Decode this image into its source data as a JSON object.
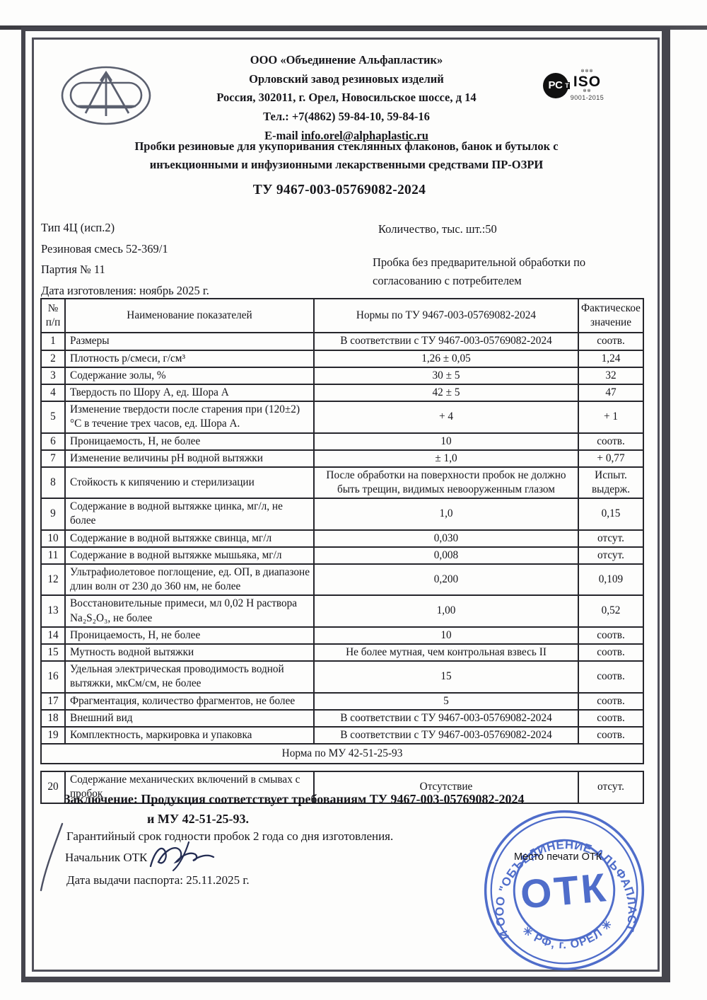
{
  "header": {
    "company": "ООО «Объединение Альфапластик»",
    "factory": "Орловский завод резиновых изделий",
    "address": "Россия, 302011, г. Орел, Новосильское шоссе, д 14",
    "phone": "Тел.: +7(4862) 59-84-10, 59-84-16",
    "email_label": "E-mail",
    "email": "info.orel@alphaplastic.ru",
    "iso_badge": {
      "mark": "РС",
      "mark_t": "Т",
      "iso": "ISO",
      "deco_top": "✼✼✼",
      "deco_bottom": "✼✼",
      "sub": "9001-2015"
    }
  },
  "product_title": "Пробки резиновые для укупоривания стеклянных флаконов, банок и бутылок с инъекционными и инфузионными лекарственными средствами ПР-ОЗРИ",
  "tu_number": "ТУ 9467-003-05769082-2024",
  "info": {
    "type": "Тип 4Ц (исп.2)",
    "mixture": "Резиновая смесь 52-369/1",
    "batch": "Партия № 11",
    "mfg_date": "Дата изготовления: ноябрь  2025 г.",
    "quantity": "Количество, тыс. шт.:50",
    "note": "Пробка без предварительной обработки по согласованию с потребителем"
  },
  "table": {
    "headers": {
      "num": "№ п/п",
      "name": "Наименование показателей",
      "norm": "Нормы по ТУ 9467-003-05769082-2024",
      "actual": "Фактическое значение"
    },
    "rows": [
      {
        "num": "1",
        "name": "Размеры",
        "norm": "В соответствии с ТУ 9467-003-05769082-2024",
        "actual": "соотв."
      },
      {
        "num": "2",
        "name": "Плотность р/смеси, г/см³",
        "norm": "1,26 ± 0,05",
        "actual": "1,24"
      },
      {
        "num": "3",
        "name": "Содержание золы, %",
        "norm": "30 ± 5",
        "actual": "32"
      },
      {
        "num": "4",
        "name": "Твердость по Шору А, ед. Шора А",
        "norm": "42 ± 5",
        "actual": "47"
      },
      {
        "num": "5",
        "name": "Изменение твердости после старения при (120±2) °С в течение трех часов, ед. Шора А.",
        "norm": "+ 4",
        "actual": "+ 1"
      },
      {
        "num": "6",
        "name": "Проницаемость, Н, не более",
        "norm": "10",
        "actual": "соотв."
      },
      {
        "num": "7",
        "name": "Изменение величины рН водной вытяжки",
        "norm": "± 1,0",
        "actual": "+ 0,77"
      },
      {
        "num": "8",
        "name": "Стойкость к кипячению и стерилизации",
        "norm": "После обработки на поверхности пробок не должно быть трещин, видимых невооруженным глазом",
        "actual": "Испыт. выдерж."
      },
      {
        "num": "9",
        "name": "Содержание в водной вытяжке цинка, мг/л, не более",
        "norm": "1,0",
        "actual": "0,15"
      },
      {
        "num": "10",
        "name": "Содержание в водной вытяжке свинца, мг/л",
        "norm": "0,030",
        "actual": "отсут."
      },
      {
        "num": "11",
        "name": "Содержание в водной вытяжке мышьяка, мг/л",
        "norm": "0,008",
        "actual": "отсут."
      },
      {
        "num": "12",
        "name": "Ультрафиолетовое поглощение, ед. ОП, в диапазоне длин волн от 230 до 360 нм, не более",
        "norm": "0,200",
        "actual": "0,109"
      },
      {
        "num": "13",
        "name": "Восстановительные примеси, мл 0,02 Н раствора Na₂S₂O₃, не более",
        "norm": "1,00",
        "actual": "0,52"
      },
      {
        "num": "14",
        "name": "Проницаемость, Н, не более",
        "norm": "10",
        "actual": "соотв."
      },
      {
        "num": "15",
        "name": "Мутность водной вытяжки",
        "norm": "Не более мутная, чем контрольная взвесь II",
        "actual": "соотв."
      },
      {
        "num": "16",
        "name": "Удельная электрическая проводимость водной вытяжки, мкСм/см, не более",
        "norm": "15",
        "actual": "соотв."
      },
      {
        "num": "17",
        "name": "Фрагментация, количество фрагментов, не более",
        "norm": "5",
        "actual": "соотв."
      },
      {
        "num": "18",
        "name": "Внешний вид",
        "norm": "В соответствии с ТУ 9467-003-05769082-2024",
        "actual": "соотв."
      },
      {
        "num": "19",
        "name": "Комплектность, маркировка и упаковка",
        "norm": "В соответствии с ТУ 9467-003-05769082-2024",
        "actual": "соотв."
      }
    ],
    "mu_note": "Норма по МУ 42-51-25-93",
    "row20": {
      "num": "20",
      "name": "Содержание механических включений в смывах с пробок",
      "norm": "Отсутствие",
      "actual": "отсут."
    }
  },
  "conclusion": {
    "label": "Заключение:",
    "line1": "Продукция соответствует требованиям ТУ 9467-003-05769082-2024",
    "line2": "и МУ 42-51-25-93.",
    "warranty": "Гарантийный срок годности пробок 2 года со дня изготовления.",
    "otk_head_label": "Начальник ОТК",
    "passport_date": "Дата выдачи паспорта:  25.11.2025 г."
  },
  "stamp": {
    "place_label": "Место печати ОТК",
    "center": "ОТК",
    "arc_top": "ОЗРИ ООО \"ОБЪЕДИНЕНИЕ АЛЬФАПЛАСТИК\"",
    "arc_bottom": "✳ РФ, г. ОРЕЛ ✳",
    "color": "#3d5ec5"
  }
}
